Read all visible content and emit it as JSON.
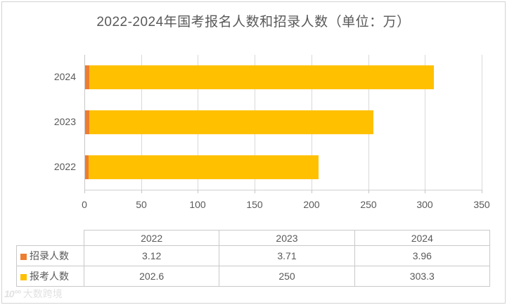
{
  "title": "2022-2024年国考报名人数和招录人数（单位：万）",
  "chart_data": {
    "type": "bar",
    "orientation": "horizontal",
    "stacked": true,
    "title": "2022-2024年国考报名人数和招录人数（单位：万）",
    "categories_display_order": [
      "2024",
      "2023",
      "2022"
    ],
    "series": [
      {
        "key": "recruited",
        "name": "招录人数",
        "color": "#ED7D31",
        "values": {
          "2022": 3.12,
          "2023": 3.71,
          "2024": 3.96
        }
      },
      {
        "key": "applicants",
        "name": "报考人数",
        "color": "#FFC000",
        "values": {
          "2022": 202.6,
          "2023": 250,
          "2024": 303.3
        }
      }
    ],
    "xlabel": "",
    "ylabel": "",
    "xlim": [
      0,
      350
    ],
    "x_ticks": [
      "0",
      "50",
      "100",
      "150",
      "200",
      "250",
      "300",
      "350"
    ],
    "grid": true,
    "legend_position": "data-table"
  },
  "table": {
    "columns": [
      "2022",
      "2023",
      "2024"
    ],
    "rows": [
      {
        "key": "recruited",
        "label": "招录人数",
        "key_color": "#ED7D31",
        "values": [
          "3.12",
          "3.71",
          "3.96"
        ]
      },
      {
        "key": "applicants",
        "label": "报考人数",
        "key_color": "#FFC000",
        "values": [
          "202.6",
          "250",
          "303.3"
        ]
      }
    ]
  },
  "watermark": {
    "logo": "10°°",
    "text": "大数跨境"
  },
  "colors": {
    "series_recruited": "#ED7D31",
    "series_applicants": "#FFC000",
    "text": "#595959",
    "gridline": "#D9D9D9",
    "axis": "#C6C6C6",
    "table_border": "#C9C9C9"
  }
}
